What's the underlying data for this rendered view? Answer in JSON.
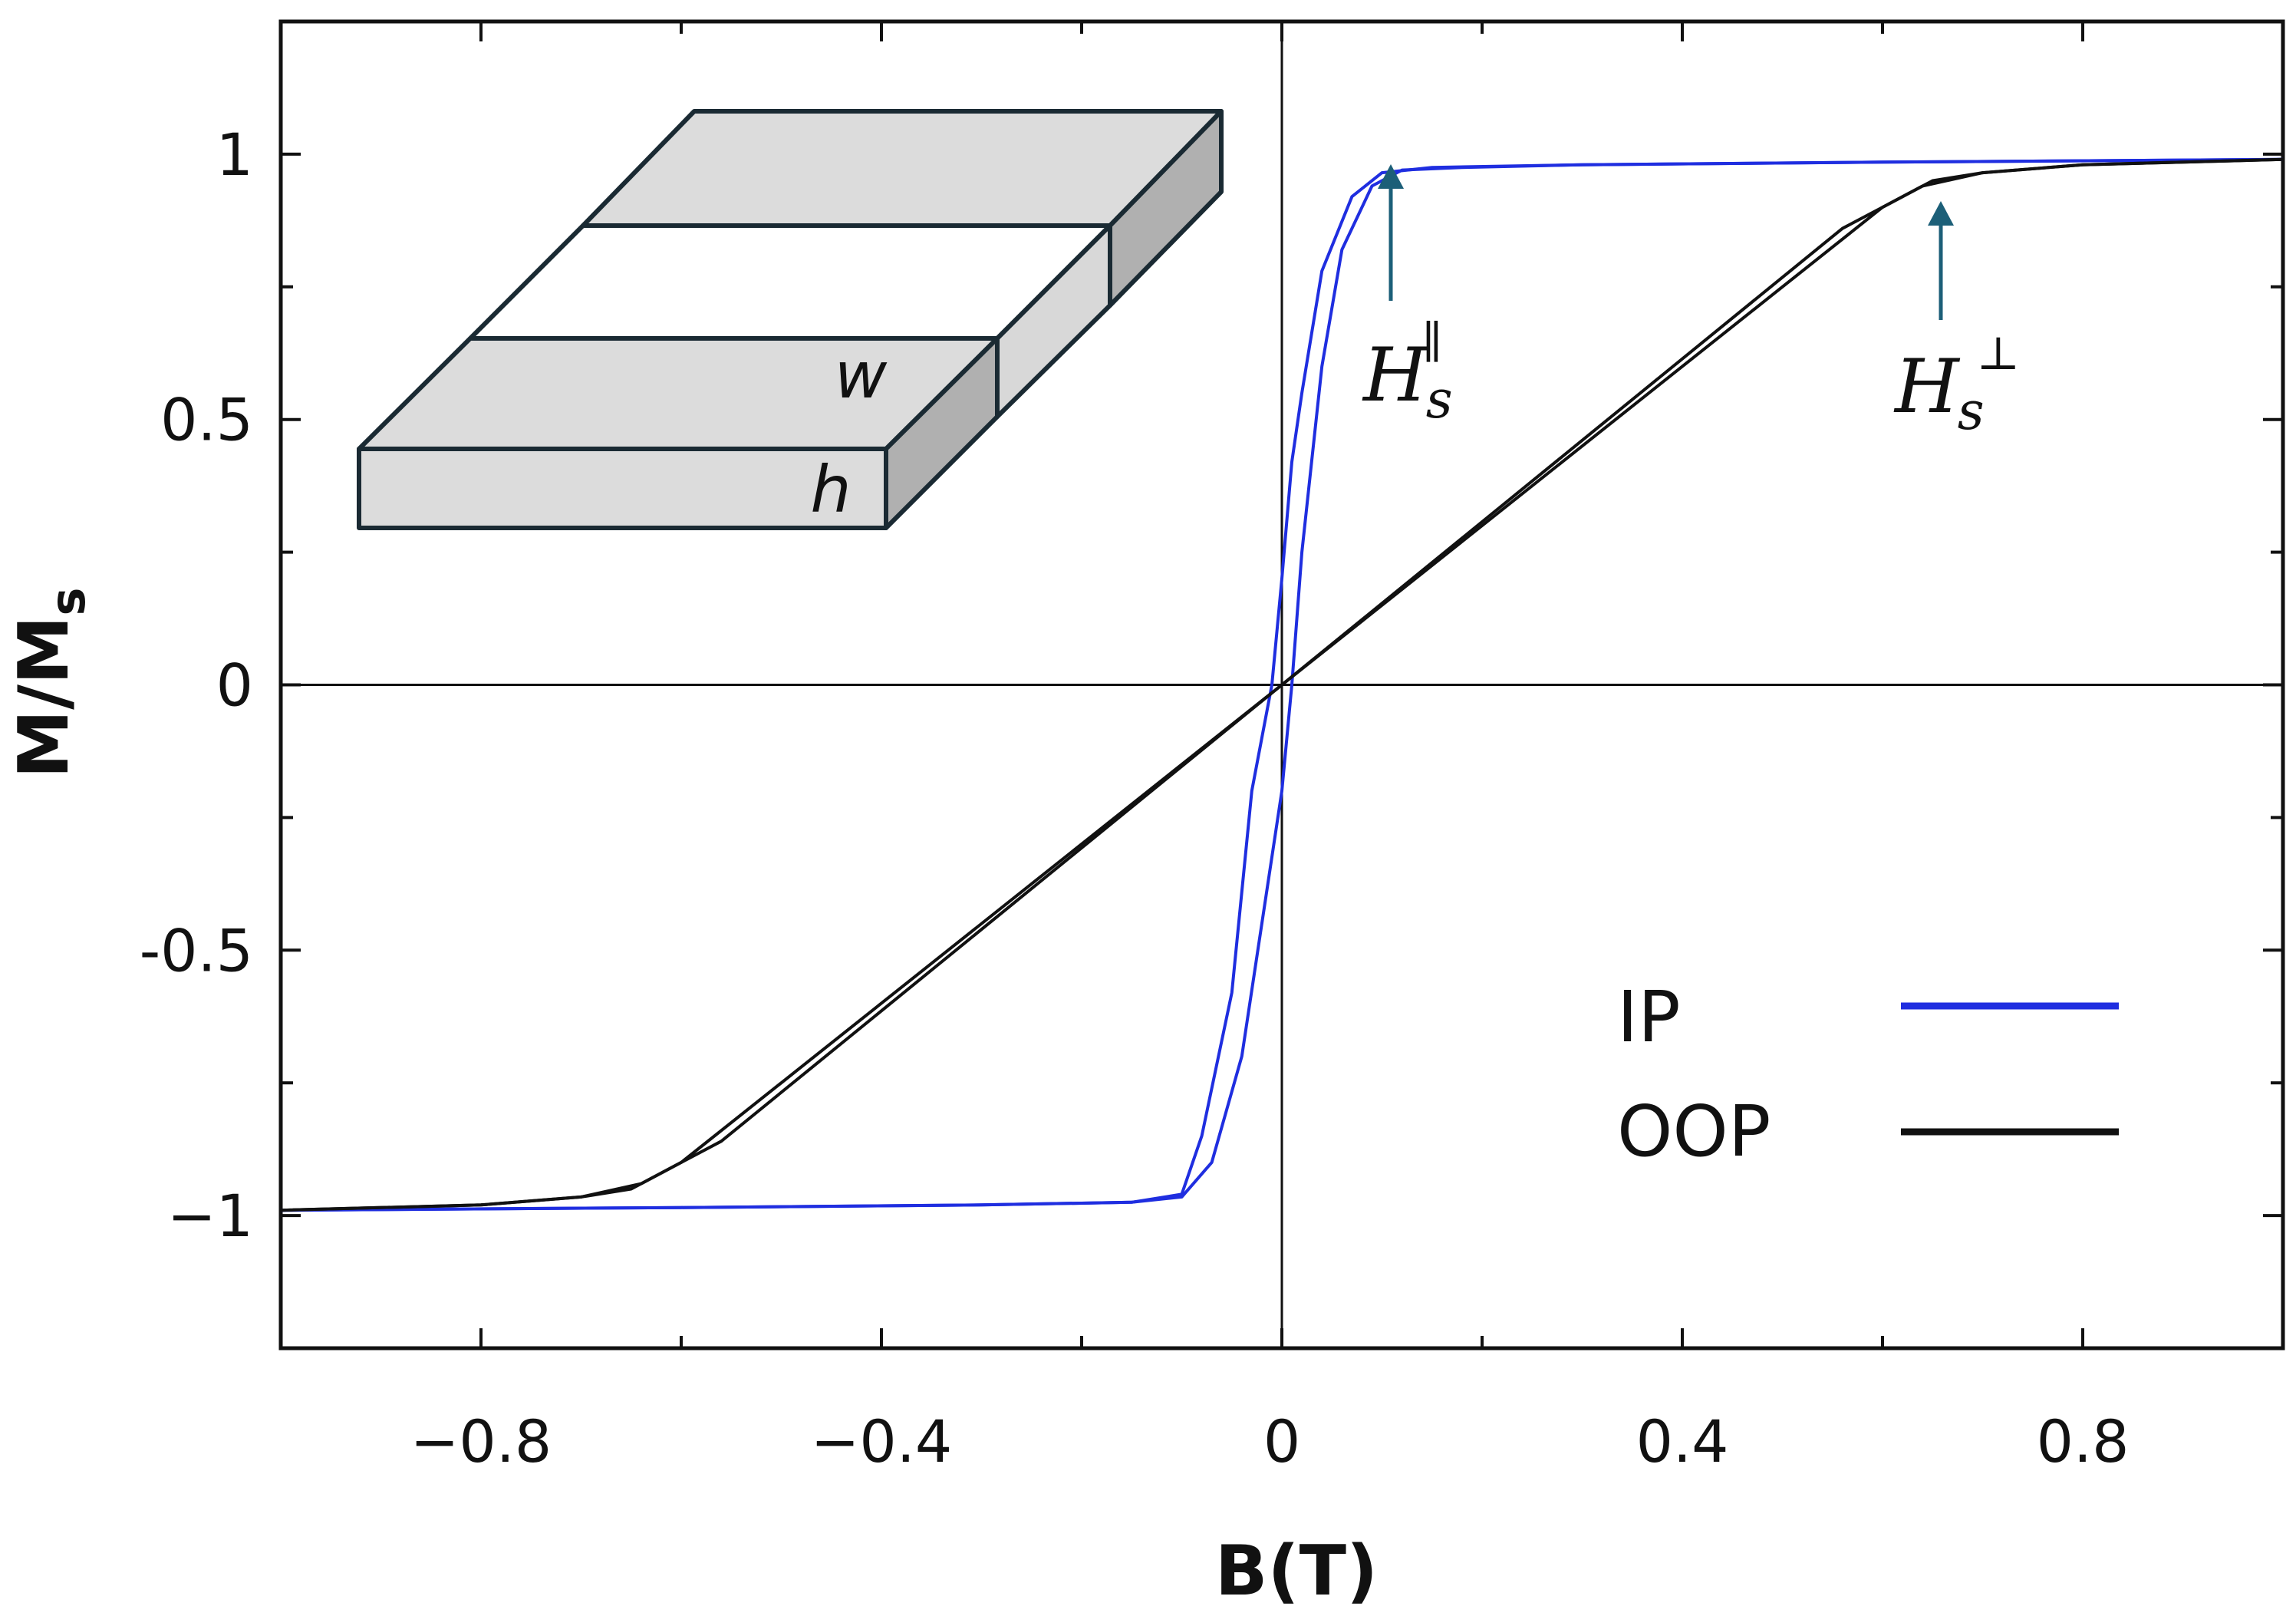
{
  "chart_data": {
    "type": "line",
    "title": "",
    "xlabel": "B(T)",
    "ylabel": "M/M",
    "ylabel_subscript": "s",
    "xlim": [
      -1.0,
      1.0
    ],
    "ylim": [
      -1.25,
      1.25
    ],
    "x_ticks": [
      -0.8,
      -0.4,
      0,
      0.4,
      0.8
    ],
    "x_tick_labels": [
      "−0.8",
      "−0.4",
      "0",
      "0.4",
      "0.8"
    ],
    "x_minor_ticks": [
      -0.6,
      -0.2,
      0.2,
      0.6
    ],
    "y_ticks": [
      1,
      0.5,
      0,
      -0.5,
      -1
    ],
    "y_tick_labels": [
      "1",
      "0.5",
      "0",
      "-0.5",
      "−1"
    ],
    "y_minor_ticks": [
      0.75,
      0.25,
      -0.25,
      -0.75
    ],
    "legend_position": "bottom-right",
    "series": [
      {
        "name": "IP",
        "color": "#1f2ee0",
        "branches": [
          {
            "x": [
              -1.0,
              -0.6,
              -0.3,
              -0.15,
              -0.1,
              -0.08,
              -0.05,
              -0.03,
              -0.01,
              0.0,
              0.01,
              0.02,
              0.04,
              0.07,
              0.1,
              0.15,
              0.3,
              0.6,
              1.0
            ],
            "y": [
              -0.99,
              -0.985,
              -0.98,
              -0.975,
              -0.96,
              -0.85,
              -0.58,
              -0.2,
              0.0,
              0.2,
              0.42,
              0.55,
              0.78,
              0.92,
              0.965,
              0.975,
              0.98,
              0.985,
              0.99
            ]
          },
          {
            "x": [
              -1.0,
              -0.6,
              -0.3,
              -0.15,
              -0.1,
              -0.07,
              -0.04,
              -0.02,
              0.0,
              0.01,
              0.02,
              0.04,
              0.06,
              0.09,
              0.12,
              0.18,
              0.3,
              0.6,
              1.0
            ],
            "y": [
              -0.99,
              -0.985,
              -0.98,
              -0.975,
              -0.965,
              -0.9,
              -0.7,
              -0.45,
              -0.2,
              0.0,
              0.25,
              0.6,
              0.82,
              0.94,
              0.97,
              0.975,
              0.98,
              0.985,
              0.99
            ]
          }
        ]
      },
      {
        "name": "OOP",
        "color": "#111111",
        "branches": [
          {
            "x": [
              -1.0,
              -0.8,
              -0.7,
              -0.65,
              -0.6,
              0.0,
              0.56,
              0.6,
              0.64,
              0.7,
              0.8,
              1.0
            ],
            "y": [
              -0.99,
              -0.98,
              -0.965,
              -0.95,
              -0.9,
              0.0,
              0.86,
              0.9,
              0.94,
              0.965,
              0.98,
              0.99
            ]
          },
          {
            "x": [
              -1.0,
              -0.8,
              -0.7,
              -0.64,
              -0.6,
              -0.56,
              0.0,
              0.6,
              0.65,
              0.7,
              0.8,
              1.0
            ],
            "y": [
              -0.99,
              -0.98,
              -0.965,
              -0.94,
              -0.9,
              -0.86,
              0.0,
              0.9,
              0.95,
              0.965,
              0.98,
              0.99
            ]
          }
        ]
      }
    ],
    "annotations": [
      {
        "id": "hs-parallel",
        "text": "H",
        "subscript": "s",
        "superscript": "∥",
        "x": 0.1,
        "arrow_to_y": 0.96,
        "color": "#1c5f78"
      },
      {
        "id": "hs-perp",
        "text": "H",
        "subscript": "s",
        "superscript": "⊥",
        "x": 0.66,
        "arrow_to_y": 0.92,
        "color": "#1c5f78"
      }
    ],
    "inset": {
      "description_labels": {
        "w": "w",
        "h": "h"
      },
      "face_color": "#dcdcdc",
      "side_color": "#b0b0b0",
      "edge_color": "#1a2a33"
    }
  }
}
